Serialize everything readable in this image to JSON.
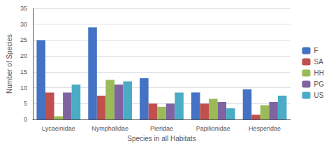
{
  "chart_data": {
    "type": "bar",
    "categories": [
      "Lycaeinidae",
      "Nymphalidae",
      "Pieridae",
      "Papilionidae",
      "Hesperidae"
    ],
    "series": [
      {
        "name": "F",
        "color": "#4472C4",
        "values": [
          25,
          29,
          13,
          8.5,
          9.5
        ]
      },
      {
        "name": "SA",
        "color": "#C0504D",
        "values": [
          8.5,
          7.5,
          5,
          5,
          1.5
        ]
      },
      {
        "name": "HH",
        "color": "#9BBB59",
        "values": [
          1,
          12.5,
          4,
          6.5,
          4.5
        ]
      },
      {
        "name": "PG",
        "color": "#8064A2",
        "values": [
          8.5,
          11,
          5,
          5.5,
          5.5
        ]
      },
      {
        "name": "US",
        "color": "#4BACC6",
        "values": [
          11,
          12,
          8.5,
          3.5,
          7.5
        ]
      }
    ],
    "xlabel": "Species in all Habitats",
    "ylabel": "Number of Species",
    "ylim": [
      0,
      35
    ],
    "yticks": [
      0,
      5,
      10,
      15,
      20,
      25,
      30,
      35
    ],
    "grid": true,
    "legend": "right"
  }
}
